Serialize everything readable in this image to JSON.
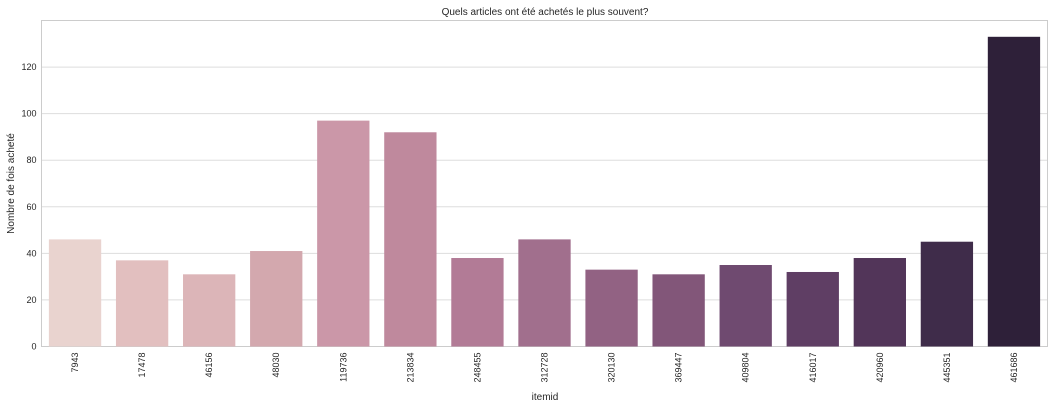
{
  "chart_data": {
    "type": "bar",
    "title": "Quels articles ont été achetés le plus souvent?",
    "xlabel": "itemid",
    "ylabel": "Nombre de fois acheté",
    "categories": [
      "7943",
      "17478",
      "46156",
      "48030",
      "119736",
      "213834",
      "248455",
      "312728",
      "320130",
      "369447",
      "409804",
      "416017",
      "420960",
      "445351",
      "461686"
    ],
    "values": [
      46,
      37,
      31,
      41,
      97,
      92,
      38,
      46,
      33,
      31,
      35,
      32,
      38,
      45,
      133
    ],
    "ylim": [
      0,
      140
    ],
    "yticks": [
      0,
      20,
      40,
      60,
      80,
      100,
      120
    ],
    "grid": "horizontal",
    "legend": "none",
    "colors": [
      "#e9d3cf",
      "#e2bfbf",
      "#dcb5b8",
      "#d3a8ae",
      "#cb97a8",
      "#bf899d",
      "#b27b96",
      "#a16f8d",
      "#926283",
      "#825679",
      "#6f4a70",
      "#5f3e64",
      "#523559",
      "#3f2c4a",
      "#2e2039"
    ]
  }
}
